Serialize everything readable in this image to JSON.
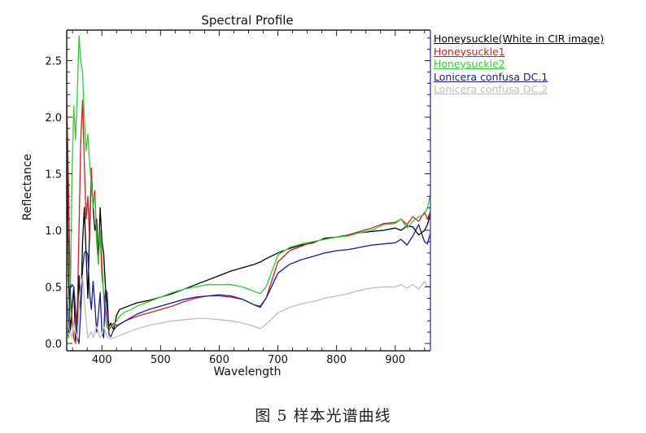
{
  "caption": "图 5 样本光谱曲线",
  "chart_data": {
    "type": "line",
    "title": "Spectral Profile",
    "xlabel": "Wavelength",
    "ylabel": "Reflectance",
    "xlim": [
      340,
      960
    ],
    "ylim": [
      0.0,
      2.78
    ],
    "xticks": [
      400,
      500,
      600,
      700,
      800,
      900
    ],
    "xtick_labels": [
      "400",
      "500",
      "600",
      "700",
      "800",
      "900"
    ],
    "yticks": [
      0.0,
      0.5,
      1.0,
      1.5,
      2.0,
      2.5
    ],
    "ytick_labels": [
      "0.0",
      "0.5",
      "1.0",
      "1.5",
      "2.0",
      "2.5"
    ],
    "grid": false,
    "legend_position": "right-outside",
    "series": [
      {
        "name": "Honeysuckle(White in CIR image)",
        "color": "#000000",
        "x": [
          340,
          343,
          346,
          349,
          352,
          355,
          358,
          361,
          364,
          367,
          370,
          373,
          376,
          379,
          382,
          385,
          388,
          391,
          394,
          397,
          400,
          403,
          406,
          409,
          412,
          415,
          420,
          425,
          430,
          440,
          450,
          460,
          480,
          500,
          520,
          540,
          560,
          580,
          600,
          620,
          640,
          660,
          670,
          680,
          700,
          720,
          740,
          760,
          780,
          800,
          820,
          840,
          860,
          880,
          900,
          910,
          920,
          930,
          940,
          950,
          955,
          960
        ],
        "y": [
          1.9,
          0.6,
          0.1,
          0.3,
          0.5,
          0.0,
          0.2,
          0.6,
          0.3,
          0.9,
          1.2,
          0.8,
          0.4,
          1.0,
          1.5,
          1.2,
          1.0,
          1.1,
          0.7,
          1.2,
          0.9,
          0.8,
          0.5,
          0.3,
          0.15,
          0.18,
          0.12,
          0.25,
          0.3,
          0.32,
          0.34,
          0.36,
          0.38,
          0.41,
          0.44,
          0.48,
          0.52,
          0.56,
          0.6,
          0.64,
          0.67,
          0.7,
          0.72,
          0.75,
          0.8,
          0.84,
          0.87,
          0.89,
          0.93,
          0.94,
          0.96,
          0.98,
          0.99,
          1.0,
          1.02,
          1.0,
          1.04,
          1.03,
          0.96,
          1.0,
          1.05,
          1.15
        ]
      },
      {
        "name": "Honeysuckle1",
        "color": "#cc1f1f",
        "x": [
          340,
          343,
          346,
          349,
          352,
          355,
          358,
          361,
          364,
          367,
          370,
          373,
          376,
          379,
          382,
          385,
          388,
          391,
          394,
          397,
          400,
          403,
          406,
          409,
          412,
          415,
          420,
          425,
          430,
          440,
          450,
          460,
          480,
          500,
          520,
          540,
          560,
          580,
          600,
          620,
          640,
          660,
          670,
          680,
          700,
          720,
          740,
          760,
          780,
          800,
          820,
          840,
          860,
          880,
          900,
          910,
          920,
          930,
          940,
          950,
          955,
          960
        ],
        "y": [
          2.2,
          1.4,
          0.5,
          0.2,
          0.05,
          0.0,
          0.3,
          1.0,
          1.8,
          2.15,
          1.6,
          1.1,
          1.3,
          0.9,
          1.55,
          1.2,
          1.35,
          0.9,
          0.7,
          1.0,
          0.6,
          0.45,
          0.3,
          0.2,
          0.12,
          0.15,
          0.18,
          0.16,
          0.17,
          0.2,
          0.22,
          0.24,
          0.27,
          0.3,
          0.33,
          0.37,
          0.4,
          0.42,
          0.42,
          0.41,
          0.39,
          0.34,
          0.33,
          0.4,
          0.72,
          0.82,
          0.86,
          0.9,
          0.92,
          0.94,
          0.96,
          0.99,
          1.02,
          1.06,
          1.07,
          1.1,
          1.05,
          1.12,
          1.08,
          1.16,
          1.1,
          1.17
        ]
      },
      {
        "name": "Honeysuckle2",
        "color": "#33cc33",
        "x": [
          340,
          343,
          346,
          349,
          352,
          355,
          358,
          361,
          364,
          367,
          370,
          373,
          376,
          379,
          382,
          385,
          388,
          391,
          394,
          397,
          400,
          403,
          406,
          409,
          412,
          415,
          420,
          425,
          430,
          440,
          450,
          460,
          480,
          500,
          520,
          540,
          560,
          580,
          600,
          620,
          640,
          660,
          670,
          680,
          700,
          720,
          740,
          760,
          780,
          800,
          820,
          840,
          860,
          880,
          900,
          910,
          920,
          930,
          940,
          950,
          955,
          960
        ],
        "y": [
          0.1,
          0.05,
          0.3,
          1.5,
          2.1,
          1.8,
          2.2,
          2.72,
          2.5,
          2.4,
          2.0,
          1.7,
          1.85,
          1.6,
          1.4,
          1.2,
          1.3,
          0.9,
          0.7,
          1.0,
          0.8,
          0.4,
          0.2,
          0.14,
          0.12,
          0.14,
          0.16,
          0.2,
          0.24,
          0.28,
          0.3,
          0.33,
          0.37,
          0.41,
          0.45,
          0.48,
          0.5,
          0.52,
          0.52,
          0.52,
          0.5,
          0.46,
          0.44,
          0.5,
          0.78,
          0.85,
          0.88,
          0.9,
          0.92,
          0.94,
          0.95,
          0.98,
          1.0,
          1.05,
          1.06,
          1.1,
          1.02,
          1.08,
          1.12,
          1.14,
          1.2,
          1.32
        ]
      },
      {
        "name": "Lonicera confusa DC.1",
        "color": "#1a1a99",
        "x": [
          340,
          343,
          346,
          349,
          352,
          355,
          358,
          361,
          364,
          367,
          370,
          373,
          376,
          379,
          382,
          385,
          388,
          391,
          394,
          397,
          400,
          403,
          406,
          409,
          412,
          415,
          420,
          425,
          430,
          440,
          450,
          460,
          480,
          500,
          520,
          540,
          560,
          580,
          600,
          620,
          640,
          660,
          670,
          680,
          700,
          720,
          740,
          760,
          780,
          800,
          820,
          840,
          860,
          880,
          900,
          910,
          920,
          930,
          940,
          950,
          955,
          960
        ],
        "y": [
          0.45,
          0.1,
          0.5,
          0.52,
          0.5,
          0.3,
          0.05,
          0.0,
          0.3,
          0.65,
          0.8,
          0.82,
          0.78,
          0.45,
          0.3,
          0.55,
          0.35,
          0.1,
          0.25,
          0.45,
          0.1,
          0.05,
          0.48,
          0.45,
          0.08,
          0.06,
          0.12,
          0.15,
          0.17,
          0.2,
          0.23,
          0.26,
          0.3,
          0.33,
          0.36,
          0.39,
          0.41,
          0.42,
          0.43,
          0.42,
          0.39,
          0.34,
          0.32,
          0.4,
          0.62,
          0.7,
          0.74,
          0.77,
          0.8,
          0.82,
          0.83,
          0.85,
          0.87,
          0.88,
          0.89,
          0.92,
          0.87,
          0.95,
          1.05,
          0.9,
          0.88,
          0.98
        ]
      },
      {
        "name": "Lonicera confusa DC.2",
        "color": "#c8b8c0",
        "x": [
          340,
          343,
          346,
          349,
          352,
          355,
          358,
          361,
          364,
          367,
          370,
          373,
          376,
          379,
          382,
          385,
          388,
          391,
          394,
          397,
          400,
          403,
          406,
          409,
          412,
          415,
          420,
          425,
          430,
          440,
          450,
          460,
          480,
          500,
          520,
          540,
          560,
          580,
          600,
          620,
          640,
          660,
          670,
          680,
          700,
          720,
          740,
          760,
          780,
          800,
          820,
          840,
          860,
          880,
          900,
          910,
          920,
          930,
          940,
          950,
          955,
          960
        ],
        "y": [
          0.3,
          0.15,
          0.1,
          0.05,
          0.2,
          0.1,
          0.05,
          0.3,
          0.5,
          0.6,
          0.4,
          0.2,
          0.05,
          0.08,
          0.1,
          0.05,
          0.1,
          0.15,
          0.1,
          0.05,
          0.08,
          0.15,
          0.1,
          0.06,
          0.05,
          0.04,
          0.05,
          0.06,
          0.07,
          0.09,
          0.11,
          0.13,
          0.16,
          0.18,
          0.2,
          0.21,
          0.22,
          0.22,
          0.21,
          0.2,
          0.18,
          0.15,
          0.13,
          0.17,
          0.27,
          0.32,
          0.35,
          0.37,
          0.4,
          0.42,
          0.44,
          0.47,
          0.49,
          0.5,
          0.5,
          0.52,
          0.49,
          0.52,
          0.48,
          0.55,
          0.5,
          0.52
        ]
      }
    ]
  }
}
